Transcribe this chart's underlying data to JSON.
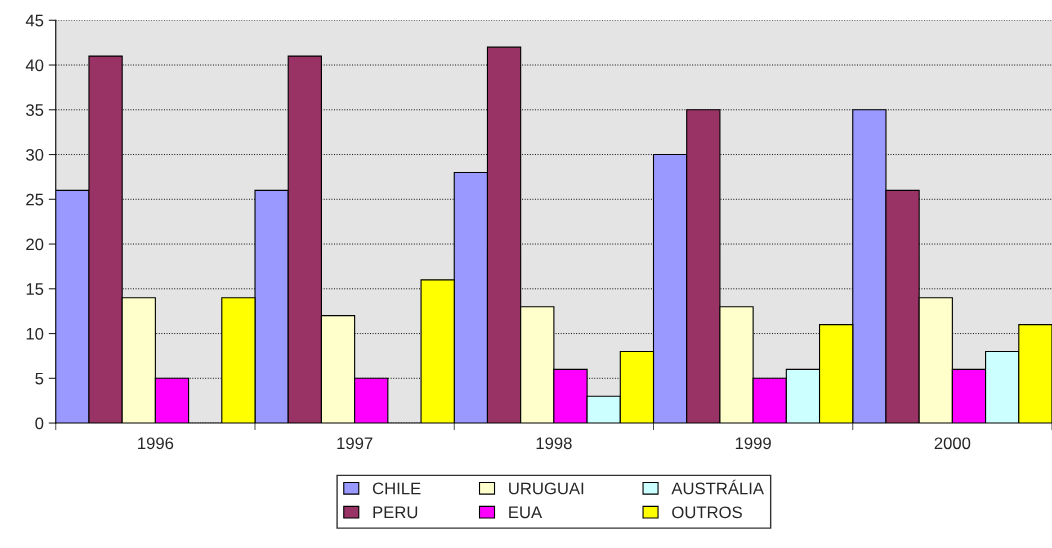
{
  "chart_data": {
    "type": "bar",
    "categories": [
      "1996",
      "1997",
      "1998",
      "1999",
      "2000"
    ],
    "series": [
      {
        "name": "CHILE",
        "color": "#9999ff",
        "values": [
          26,
          26,
          28,
          30,
          35
        ]
      },
      {
        "name": "PERU",
        "color": "#993366",
        "values": [
          41,
          41,
          42,
          35,
          26
        ]
      },
      {
        "name": "URUGUAI",
        "color": "#ffffcc",
        "values": [
          14,
          12,
          13,
          13,
          14
        ]
      },
      {
        "name": "EUA",
        "color": "#ff00ff",
        "values": [
          5,
          5,
          6,
          5,
          6
        ]
      },
      {
        "name": "AUSTRÁLIA",
        "color": "#ccffff",
        "values": [
          null,
          null,
          3,
          6,
          8
        ]
      },
      {
        "name": "OUTROS",
        "color": "#ffff00",
        "values": [
          14,
          16,
          8,
          11,
          11
        ]
      }
    ],
    "ylim": [
      0,
      45
    ],
    "yticks": [
      0,
      5,
      10,
      15,
      20,
      25,
      30,
      35,
      40,
      45
    ],
    "grid": "y",
    "legend": "bottom"
  }
}
